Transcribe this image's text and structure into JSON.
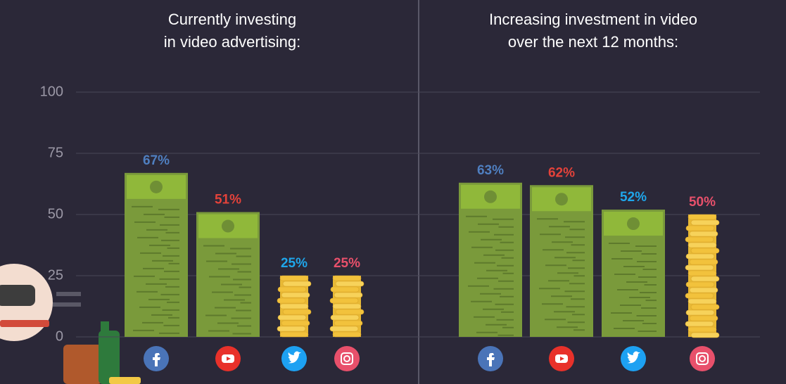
{
  "chart_data": [
    {
      "type": "bar",
      "title": [
        "Currently investing",
        "in video advertising:"
      ],
      "categories": [
        null,
        null,
        null,
        null
      ],
      "values": [
        67,
        51,
        25,
        25
      ],
      "value_labels": [
        "67%",
        "51%",
        "25%",
        "25%"
      ],
      "label_colors": [
        "#4f7fc0",
        "#e3423a",
        "#1fa6ea",
        "#e8506b"
      ],
      "mark_styles": [
        "bill",
        "bill",
        "coins",
        "coins"
      ],
      "ylim": [
        0,
        100
      ],
      "yticks": [
        0,
        25,
        50,
        75,
        100
      ],
      "grid": true
    },
    {
      "type": "bar",
      "title": [
        "Increasing investment  in video",
        "over the next 12 months:"
      ],
      "categories": [
        null,
        null,
        null,
        null
      ],
      "values": [
        63,
        62,
        52,
        50
      ],
      "value_labels": [
        "63%",
        "62%",
        "52%",
        "50%"
      ],
      "label_colors": [
        "#4f7fc0",
        "#e3423a",
        "#1fa6ea",
        "#e8506b"
      ],
      "mark_styles": [
        "bill",
        "bill",
        "bill",
        "coins"
      ],
      "ylim": [
        0,
        100
      ]
    }
  ]
}
